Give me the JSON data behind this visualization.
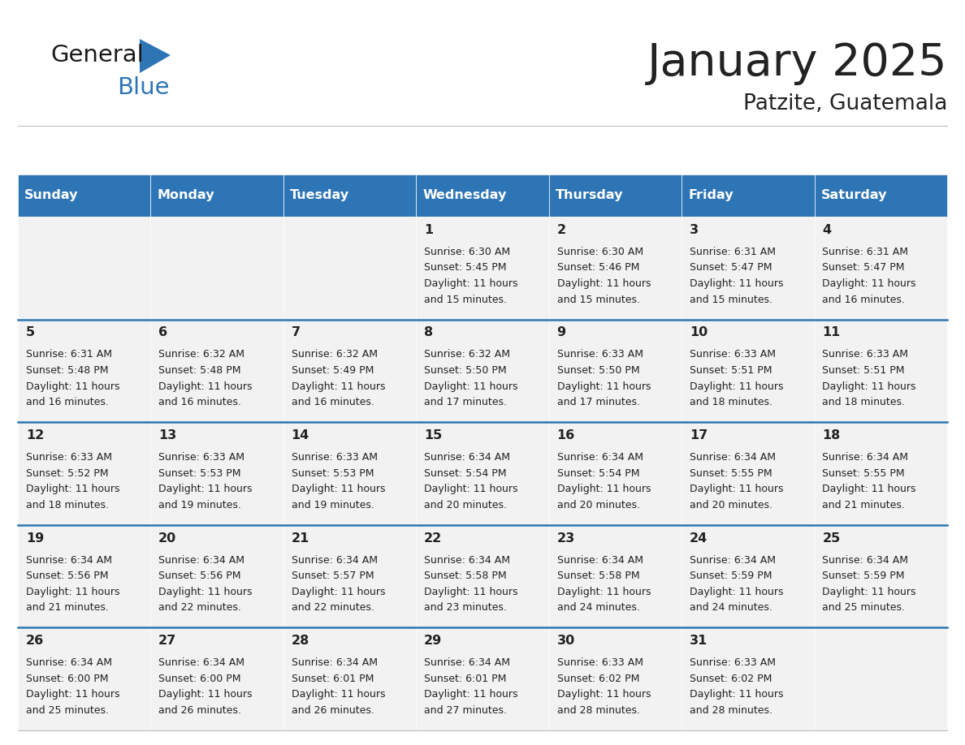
{
  "title": "January 2025",
  "subtitle": "Patzite, Guatemala",
  "days_of_week": [
    "Sunday",
    "Monday",
    "Tuesday",
    "Wednesday",
    "Thursday",
    "Friday",
    "Saturday"
  ],
  "header_bg": "#2e75b6",
  "header_text": "#ffffff",
  "cell_bg": "#f2f2f2",
  "row_line_color": "#2e75b6",
  "text_color": "#222222",
  "title_color": "#222222",
  "logo_color_general": "#1a1a1a",
  "logo_color_blue": "#2e75b6",
  "calendar_data": [
    [
      {
        "day": null,
        "sunrise": null,
        "sunset": null,
        "daylight": ""
      },
      {
        "day": null,
        "sunrise": null,
        "sunset": null,
        "daylight": ""
      },
      {
        "day": null,
        "sunrise": null,
        "sunset": null,
        "daylight": ""
      },
      {
        "day": 1,
        "sunrise": "6:30 AM",
        "sunset": "5:45 PM",
        "daylight": "11 hours\nand 15 minutes."
      },
      {
        "day": 2,
        "sunrise": "6:30 AM",
        "sunset": "5:46 PM",
        "daylight": "11 hours\nand 15 minutes."
      },
      {
        "day": 3,
        "sunrise": "6:31 AM",
        "sunset": "5:47 PM",
        "daylight": "11 hours\nand 15 minutes."
      },
      {
        "day": 4,
        "sunrise": "6:31 AM",
        "sunset": "5:47 PM",
        "daylight": "11 hours\nand 16 minutes."
      }
    ],
    [
      {
        "day": 5,
        "sunrise": "6:31 AM",
        "sunset": "5:48 PM",
        "daylight": "11 hours\nand 16 minutes."
      },
      {
        "day": 6,
        "sunrise": "6:32 AM",
        "sunset": "5:48 PM",
        "daylight": "11 hours\nand 16 minutes."
      },
      {
        "day": 7,
        "sunrise": "6:32 AM",
        "sunset": "5:49 PM",
        "daylight": "11 hours\nand 16 minutes."
      },
      {
        "day": 8,
        "sunrise": "6:32 AM",
        "sunset": "5:50 PM",
        "daylight": "11 hours\nand 17 minutes."
      },
      {
        "day": 9,
        "sunrise": "6:33 AM",
        "sunset": "5:50 PM",
        "daylight": "11 hours\nand 17 minutes."
      },
      {
        "day": 10,
        "sunrise": "6:33 AM",
        "sunset": "5:51 PM",
        "daylight": "11 hours\nand 18 minutes."
      },
      {
        "day": 11,
        "sunrise": "6:33 AM",
        "sunset": "5:51 PM",
        "daylight": "11 hours\nand 18 minutes."
      }
    ],
    [
      {
        "day": 12,
        "sunrise": "6:33 AM",
        "sunset": "5:52 PM",
        "daylight": "11 hours\nand 18 minutes."
      },
      {
        "day": 13,
        "sunrise": "6:33 AM",
        "sunset": "5:53 PM",
        "daylight": "11 hours\nand 19 minutes."
      },
      {
        "day": 14,
        "sunrise": "6:33 AM",
        "sunset": "5:53 PM",
        "daylight": "11 hours\nand 19 minutes."
      },
      {
        "day": 15,
        "sunrise": "6:34 AM",
        "sunset": "5:54 PM",
        "daylight": "11 hours\nand 20 minutes."
      },
      {
        "day": 16,
        "sunrise": "6:34 AM",
        "sunset": "5:54 PM",
        "daylight": "11 hours\nand 20 minutes."
      },
      {
        "day": 17,
        "sunrise": "6:34 AM",
        "sunset": "5:55 PM",
        "daylight": "11 hours\nand 20 minutes."
      },
      {
        "day": 18,
        "sunrise": "6:34 AM",
        "sunset": "5:55 PM",
        "daylight": "11 hours\nand 21 minutes."
      }
    ],
    [
      {
        "day": 19,
        "sunrise": "6:34 AM",
        "sunset": "5:56 PM",
        "daylight": "11 hours\nand 21 minutes."
      },
      {
        "day": 20,
        "sunrise": "6:34 AM",
        "sunset": "5:56 PM",
        "daylight": "11 hours\nand 22 minutes."
      },
      {
        "day": 21,
        "sunrise": "6:34 AM",
        "sunset": "5:57 PM",
        "daylight": "11 hours\nand 22 minutes."
      },
      {
        "day": 22,
        "sunrise": "6:34 AM",
        "sunset": "5:58 PM",
        "daylight": "11 hours\nand 23 minutes."
      },
      {
        "day": 23,
        "sunrise": "6:34 AM",
        "sunset": "5:58 PM",
        "daylight": "11 hours\nand 24 minutes."
      },
      {
        "day": 24,
        "sunrise": "6:34 AM",
        "sunset": "5:59 PM",
        "daylight": "11 hours\nand 24 minutes."
      },
      {
        "day": 25,
        "sunrise": "6:34 AM",
        "sunset": "5:59 PM",
        "daylight": "11 hours\nand 25 minutes."
      }
    ],
    [
      {
        "day": 26,
        "sunrise": "6:34 AM",
        "sunset": "6:00 PM",
        "daylight": "11 hours\nand 25 minutes."
      },
      {
        "day": 27,
        "sunrise": "6:34 AM",
        "sunset": "6:00 PM",
        "daylight": "11 hours\nand 26 minutes."
      },
      {
        "day": 28,
        "sunrise": "6:34 AM",
        "sunset": "6:01 PM",
        "daylight": "11 hours\nand 26 minutes."
      },
      {
        "day": 29,
        "sunrise": "6:34 AM",
        "sunset": "6:01 PM",
        "daylight": "11 hours\nand 27 minutes."
      },
      {
        "day": 30,
        "sunrise": "6:33 AM",
        "sunset": "6:02 PM",
        "daylight": "11 hours\nand 28 minutes."
      },
      {
        "day": 31,
        "sunrise": "6:33 AM",
        "sunset": "6:02 PM",
        "daylight": "11 hours\nand 28 minutes."
      },
      {
        "day": null,
        "sunrise": null,
        "sunset": null,
        "daylight": ""
      }
    ]
  ]
}
